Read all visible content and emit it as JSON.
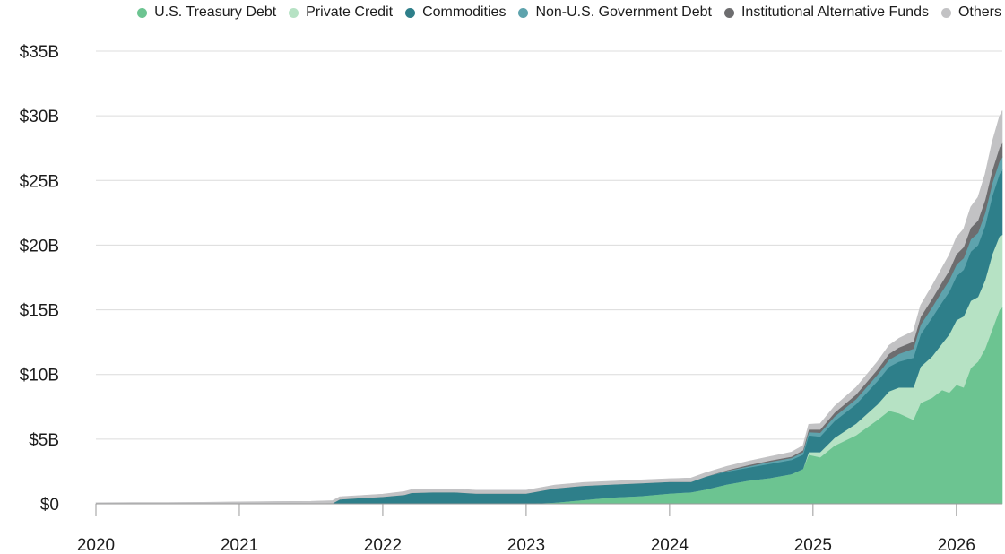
{
  "chart_data": {
    "type": "area",
    "stacked": true,
    "title": "",
    "xlabel": "",
    "ylabel": "",
    "ylim": [
      0,
      35
    ],
    "xlim": [
      2020.0,
      2026.32
    ],
    "y_ticks": [
      0,
      5,
      10,
      15,
      20,
      25,
      30,
      35
    ],
    "y_tick_labels": [
      "$0",
      "$5B",
      "$10B",
      "$15B",
      "$20B",
      "$25B",
      "$30B",
      "$35B"
    ],
    "x_ticks": [
      2020,
      2021,
      2022,
      2023,
      2024,
      2025,
      2026
    ],
    "x_tick_labels": [
      "2020",
      "2021",
      "2022",
      "2023",
      "2024",
      "2025",
      "2026"
    ],
    "grid": true,
    "legend_position": "top-right",
    "x": [
      2020.0,
      2020.25,
      2020.5,
      2020.75,
      2021.0,
      2021.25,
      2021.5,
      2021.65,
      2021.7,
      2021.85,
      2022.0,
      2022.15,
      2022.2,
      2022.35,
      2022.5,
      2022.65,
      2022.85,
      2023.0,
      2023.2,
      2023.4,
      2023.6,
      2023.8,
      2024.0,
      2024.15,
      2024.25,
      2024.4,
      2024.55,
      2024.7,
      2024.85,
      2024.93,
      2024.97,
      2025.05,
      2025.15,
      2025.3,
      2025.45,
      2025.53,
      2025.6,
      2025.7,
      2025.75,
      2025.83,
      2025.9,
      2025.95,
      2026.0,
      2026.05,
      2026.1,
      2026.15,
      2026.2,
      2026.25,
      2026.3,
      2026.32
    ],
    "series": [
      {
        "name": "U.S. Treasury Debt",
        "color": "#6cc491",
        "values": [
          0,
          0,
          0,
          0,
          0,
          0,
          0,
          0,
          0,
          0,
          0,
          0,
          0,
          0,
          0,
          0,
          0,
          0,
          0.1,
          0.3,
          0.5,
          0.6,
          0.8,
          0.9,
          1.1,
          1.5,
          1.8,
          2.0,
          2.3,
          2.7,
          3.8,
          3.6,
          4.5,
          5.3,
          6.5,
          7.2,
          7.0,
          6.5,
          7.8,
          8.2,
          8.8,
          8.6,
          9.2,
          9.0,
          10.5,
          11.0,
          12.0,
          13.5,
          15.0,
          15.2
        ]
      },
      {
        "name": "Private Credit",
        "color": "#b6e2c4",
        "values": [
          0,
          0,
          0,
          0,
          0,
          0,
          0,
          0,
          0,
          0,
          0,
          0,
          0,
          0,
          0,
          0,
          0,
          0,
          0,
          0,
          0,
          0,
          0,
          0,
          0,
          0,
          0,
          0,
          0,
          0,
          0.2,
          0.4,
          0.6,
          0.9,
          1.2,
          1.5,
          2.0,
          2.5,
          2.8,
          3.2,
          3.6,
          4.5,
          5.0,
          5.5,
          5.2,
          5.0,
          5.3,
          5.8,
          5.7,
          5.6
        ]
      },
      {
        "name": "Commodities",
        "color": "#2e7f8a",
        "values": [
          0,
          0,
          0,
          0,
          0,
          0,
          0,
          0.05,
          0.35,
          0.45,
          0.55,
          0.7,
          0.85,
          0.9,
          0.9,
          0.8,
          0.8,
          0.8,
          1.1,
          1.1,
          1.0,
          1.0,
          0.9,
          0.8,
          1.0,
          1.0,
          1.0,
          1.1,
          1.1,
          1.1,
          1.3,
          1.2,
          1.3,
          1.5,
          1.8,
          1.9,
          2.0,
          2.3,
          2.5,
          3.0,
          3.2,
          3.3,
          3.4,
          3.6,
          3.8,
          4.0,
          4.2,
          4.5,
          4.8,
          5.0
        ]
      },
      {
        "name": "Non-U.S. Government Debt",
        "color": "#5ea3ad",
        "values": [
          0,
          0,
          0,
          0,
          0,
          0,
          0,
          0,
          0,
          0,
          0,
          0,
          0,
          0,
          0,
          0,
          0,
          0,
          0,
          0,
          0,
          0,
          0,
          0,
          0,
          0.05,
          0.1,
          0.15,
          0.15,
          0.2,
          0.25,
          0.3,
          0.35,
          0.4,
          0.5,
          0.55,
          0.6,
          0.7,
          0.75,
          0.8,
          0.85,
          0.9,
          0.9,
          0.9,
          0.95,
          0.95,
          1.0,
          1.0,
          1.0,
          1.0
        ]
      },
      {
        "name": "Institutional Alternative Funds",
        "color": "#6d6d6f",
        "values": [
          0,
          0,
          0,
          0,
          0,
          0,
          0,
          0,
          0,
          0,
          0,
          0,
          0,
          0,
          0,
          0,
          0,
          0,
          0,
          0,
          0,
          0,
          0,
          0,
          0,
          0.05,
          0.1,
          0.1,
          0.1,
          0.15,
          0.2,
          0.25,
          0.3,
          0.35,
          0.4,
          0.45,
          0.5,
          0.55,
          0.6,
          0.65,
          0.7,
          0.75,
          0.8,
          0.85,
          0.9,
          0.95,
          1.0,
          1.0,
          1.05,
          1.1
        ]
      },
      {
        "name": "Others",
        "color": "#c2c2c4",
        "values": [
          0.08,
          0.1,
          0.1,
          0.12,
          0.15,
          0.18,
          0.2,
          0.2,
          0.2,
          0.2,
          0.2,
          0.25,
          0.25,
          0.25,
          0.25,
          0.25,
          0.25,
          0.25,
          0.25,
          0.25,
          0.25,
          0.25,
          0.25,
          0.3,
          0.3,
          0.3,
          0.3,
          0.3,
          0.35,
          0.35,
          0.4,
          0.45,
          0.5,
          0.55,
          0.6,
          0.65,
          0.7,
          0.8,
          0.9,
          1.0,
          1.1,
          1.2,
          1.3,
          1.4,
          1.6,
          1.8,
          2.0,
          2.2,
          2.4,
          2.5
        ]
      }
    ]
  }
}
